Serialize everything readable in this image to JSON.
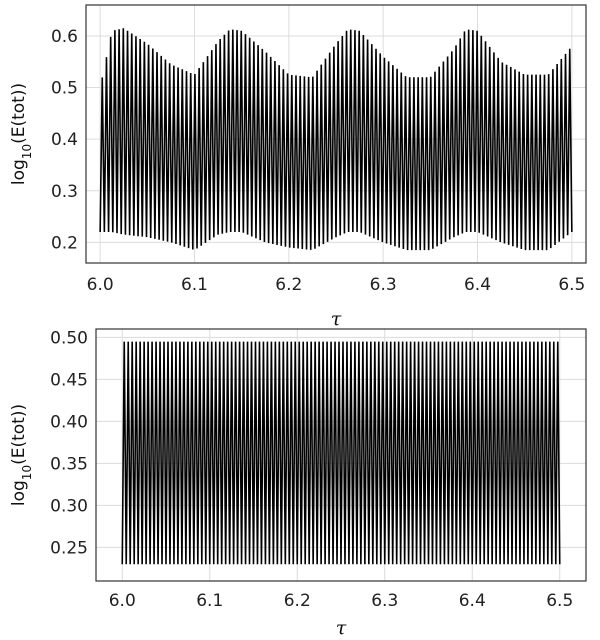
{
  "chart_data": [
    {
      "type": "line",
      "title": "",
      "xlabel": "τ",
      "ylabel_main": "log",
      "ylabel_sub": "10",
      "ylabel_rest": "(E(tot))",
      "xlim": [
        5.985,
        6.515
      ],
      "ylim": [
        0.16,
        0.66
      ],
      "xticks": [
        6.0,
        6.1,
        6.2,
        6.3,
        6.4,
        6.5
      ],
      "xtick_labels": [
        "6.0",
        "6.1",
        "6.2",
        "6.3",
        "6.4",
        "6.5"
      ],
      "yticks": [
        0.2,
        0.3,
        0.4,
        0.5,
        0.6
      ],
      "ytick_labels": [
        "0.2",
        "0.3",
        "0.4",
        "0.5",
        "0.6"
      ],
      "grid": true,
      "series": [
        {
          "color": "#000000",
          "x_range": [
            6.0,
            6.5
          ],
          "oscillations": 112,
          "envelope_x": [
            6.0,
            6.0125,
            6.025,
            6.05,
            6.075,
            6.1,
            6.125,
            6.1375,
            6.15,
            6.175,
            6.2,
            6.225,
            6.25,
            6.2625,
            6.275,
            6.3,
            6.325,
            6.35,
            6.375,
            6.3875,
            6.4,
            6.425,
            6.45,
            6.475,
            6.5
          ],
          "envelope_upper": [
            0.5,
            0.61,
            0.615,
            0.585,
            0.545,
            0.525,
            0.59,
            0.613,
            0.61,
            0.57,
            0.525,
            0.52,
            0.585,
            0.613,
            0.61,
            0.56,
            0.52,
            0.52,
            0.575,
            0.613,
            0.61,
            0.55,
            0.525,
            0.525,
            0.58
          ],
          "envelope_lower": [
            0.22,
            0.22,
            0.215,
            0.21,
            0.2,
            0.185,
            0.215,
            0.22,
            0.22,
            0.2,
            0.19,
            0.185,
            0.21,
            0.22,
            0.22,
            0.2,
            0.185,
            0.185,
            0.21,
            0.22,
            0.22,
            0.2,
            0.185,
            0.185,
            0.22
          ]
        }
      ]
    },
    {
      "type": "line",
      "title": "",
      "xlabel": "τ",
      "ylabel_main": "log",
      "ylabel_sub": "10",
      "ylabel_rest": "(E(tot))",
      "xlim": [
        5.97,
        6.53
      ],
      "ylim": [
        0.21,
        0.51
      ],
      "xticks": [
        6.0,
        6.1,
        6.2,
        6.3,
        6.4,
        6.5
      ],
      "xtick_labels": [
        "6.0",
        "6.1",
        "6.2",
        "6.3",
        "6.4",
        "6.5"
      ],
      "yticks": [
        0.25,
        0.3,
        0.35,
        0.4,
        0.45,
        0.5
      ],
      "ytick_labels": [
        "0.25",
        "0.30",
        "0.35",
        "0.40",
        "0.45",
        "0.50"
      ],
      "grid": true,
      "series": [
        {
          "color": "#000000",
          "x_range": [
            6.0,
            6.5
          ],
          "oscillations": 110,
          "upper": 0.495,
          "lower": 0.23
        }
      ]
    }
  ]
}
